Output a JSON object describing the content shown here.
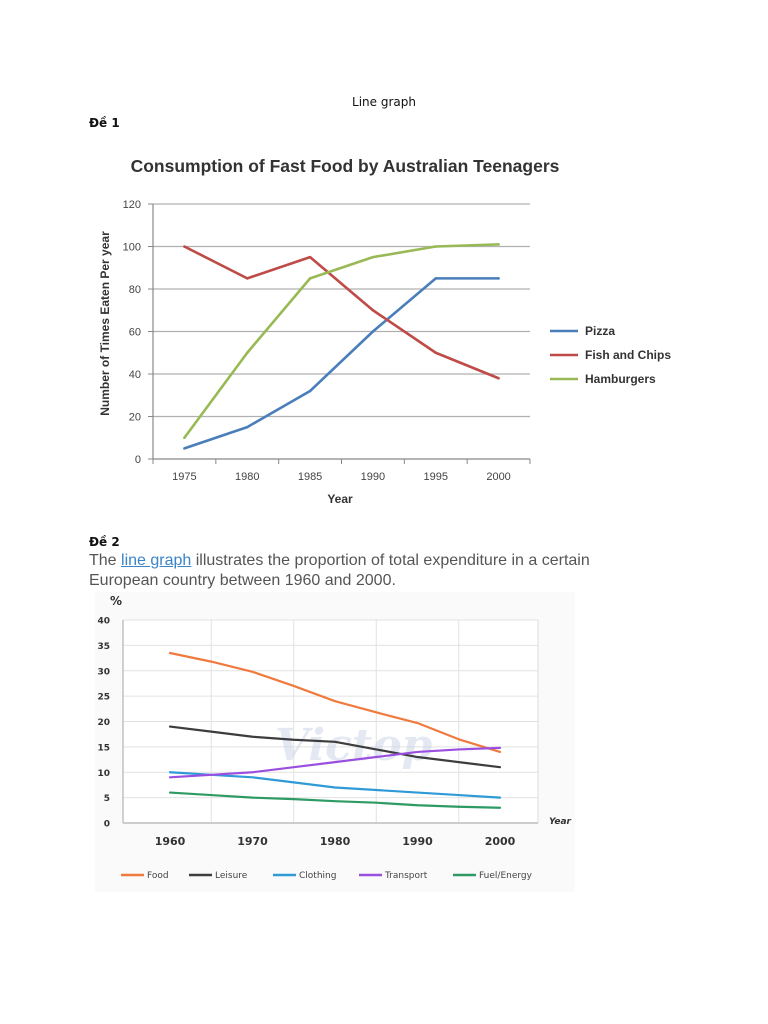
{
  "document": {
    "heading": "Line graph",
    "section1_label": "Đề 1",
    "section2_label": "Đề 2",
    "intro_before_link": "The ",
    "intro_link": "line graph",
    "intro_after_link": " illustrates the proportion of total expenditure in a certain European country between 1960 and 2000."
  },
  "chart_data": [
    {
      "type": "line",
      "title": "Consumption of Fast Food by Australian Teenagers",
      "xlabel": "Year",
      "ylabel": "Number of Times Eaten Per year",
      "x": [
        "1975",
        "1980",
        "1985",
        "1990",
        "1995",
        "2000"
      ],
      "ylim": [
        0,
        120
      ],
      "yticks": [
        "0",
        "20",
        "40",
        "60",
        "80",
        "100",
        "120"
      ],
      "grid": true,
      "legend_position": "right",
      "series": [
        {
          "name": "Pizza",
          "color": "#4a7ebb",
          "values": [
            5,
            15,
            32,
            60,
            85,
            85
          ]
        },
        {
          "name": "Fish and Chips",
          "color": "#be4b48",
          "values": [
            100,
            85,
            95,
            70,
            50,
            38
          ]
        },
        {
          "name": "Hamburgers",
          "color": "#98b954",
          "values": [
            10,
            50,
            85,
            95,
            100,
            101
          ]
        }
      ]
    },
    {
      "type": "line",
      "title": "",
      "ylabel": "%",
      "xlabel": "Year",
      "x": [
        1960,
        1965,
        1970,
        1975,
        1980,
        1985,
        1990,
        1995,
        2000
      ],
      "xticks": [
        "1960",
        "1970",
        "1980",
        "1990",
        "2000"
      ],
      "ylim": [
        0,
        40
      ],
      "yticks": [
        "0",
        "5",
        "10",
        "15",
        "20",
        "25",
        "30",
        "35",
        "40"
      ],
      "grid": true,
      "legend_position": "bottom",
      "watermark": "Victop",
      "series": [
        {
          "name": "Food",
          "color": "#f07a3d",
          "values": [
            33.5,
            31.8,
            29.8,
            27,
            24,
            21.8,
            19.7,
            16.5,
            14
          ]
        },
        {
          "name": "Leisure",
          "color": "#3d3d3d",
          "values": [
            19,
            18,
            17,
            16.4,
            16,
            14.5,
            13,
            12,
            11
          ]
        },
        {
          "name": "Clothing",
          "color": "#2f9ad6",
          "values": [
            10,
            9.5,
            9,
            8,
            7,
            6.5,
            6,
            5.5,
            5
          ]
        },
        {
          "name": "Transport",
          "color": "#9b4fe0",
          "values": [
            9,
            9.5,
            10,
            11,
            12,
            13,
            14,
            14.5,
            14.8
          ]
        },
        {
          "name": "Fuel/Energy",
          "color": "#2e9a64",
          "values": [
            6,
            5.5,
            5,
            4.7,
            4.3,
            4,
            3.5,
            3.2,
            3
          ]
        }
      ]
    }
  ]
}
